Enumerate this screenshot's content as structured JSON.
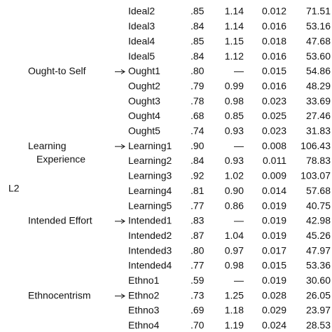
{
  "side_label": "L2",
  "rows": [
    {
      "cells": [
        "Ideal2",
        ".85",
        "1.14",
        "0.012",
        "71.51"
      ]
    },
    {
      "cells": [
        "Ideal3",
        ".84",
        "1.14",
        "0.016",
        "53.16"
      ]
    },
    {
      "cells": [
        "Ideal4",
        ".85",
        "1.15",
        "0.018",
        "47.68"
      ]
    },
    {
      "cells": [
        "Ideal5",
        ".84",
        "1.12",
        "0.016",
        "53.60"
      ]
    },
    {
      "group": [
        "Ought-to Self"
      ],
      "cells": [
        "Ought1",
        ".80",
        "—",
        "0.015",
        "54.86"
      ]
    },
    {
      "cells": [
        "Ought2",
        ".79",
        "0.99",
        "0.016",
        "48.29"
      ]
    },
    {
      "cells": [
        "Ought3",
        ".78",
        "0.98",
        "0.023",
        "33.69"
      ]
    },
    {
      "cells": [
        "Ought4",
        ".68",
        "0.85",
        "0.025",
        "27.46"
      ]
    },
    {
      "cells": [
        "Ought5",
        ".74",
        "0.93",
        "0.023",
        "31.83"
      ]
    },
    {
      "group": [
        "Learning",
        "Experience"
      ],
      "cells": [
        "Learning1",
        ".90",
        "—",
        "0.008",
        "106.43"
      ]
    },
    {
      "cells": [
        "Learning2",
        ".84",
        "0.93",
        "0.011",
        "78.83"
      ]
    },
    {
      "cells": [
        "Learning3",
        ".92",
        "1.02",
        "0.009",
        "103.07"
      ]
    },
    {
      "cells": [
        "Learning4",
        ".81",
        "0.90",
        "0.014",
        "57.68"
      ]
    },
    {
      "cells": [
        "Learning5",
        ".77",
        "0.86",
        "0.019",
        "40.75"
      ]
    },
    {
      "group": [
        "Intended Effort"
      ],
      "cells": [
        "Intended1",
        ".83",
        "—",
        "0.019",
        "42.98"
      ]
    },
    {
      "cells": [
        "Intended2",
        ".87",
        "1.04",
        "0.019",
        "45.26"
      ]
    },
    {
      "cells": [
        "Intended3",
        ".80",
        "0.97",
        "0.017",
        "47.97"
      ]
    },
    {
      "cells": [
        "Intended4",
        ".77",
        "0.98",
        "0.015",
        "53.36"
      ]
    },
    {
      "cells": [
        "Ethno1",
        ".59",
        "—",
        "0.019",
        "30.60"
      ]
    },
    {
      "group": [
        "Ethnocentrism"
      ],
      "cells": [
        "Ethno2",
        ".73",
        "1.25",
        "0.028",
        "26.05"
      ]
    },
    {
      "cells": [
        "Ethno3",
        ".69",
        "1.18",
        "0.029",
        "23.97"
      ]
    },
    {
      "cells": [
        "Ethno4",
        ".70",
        "1.19",
        "0.024",
        "28.53"
      ]
    }
  ]
}
